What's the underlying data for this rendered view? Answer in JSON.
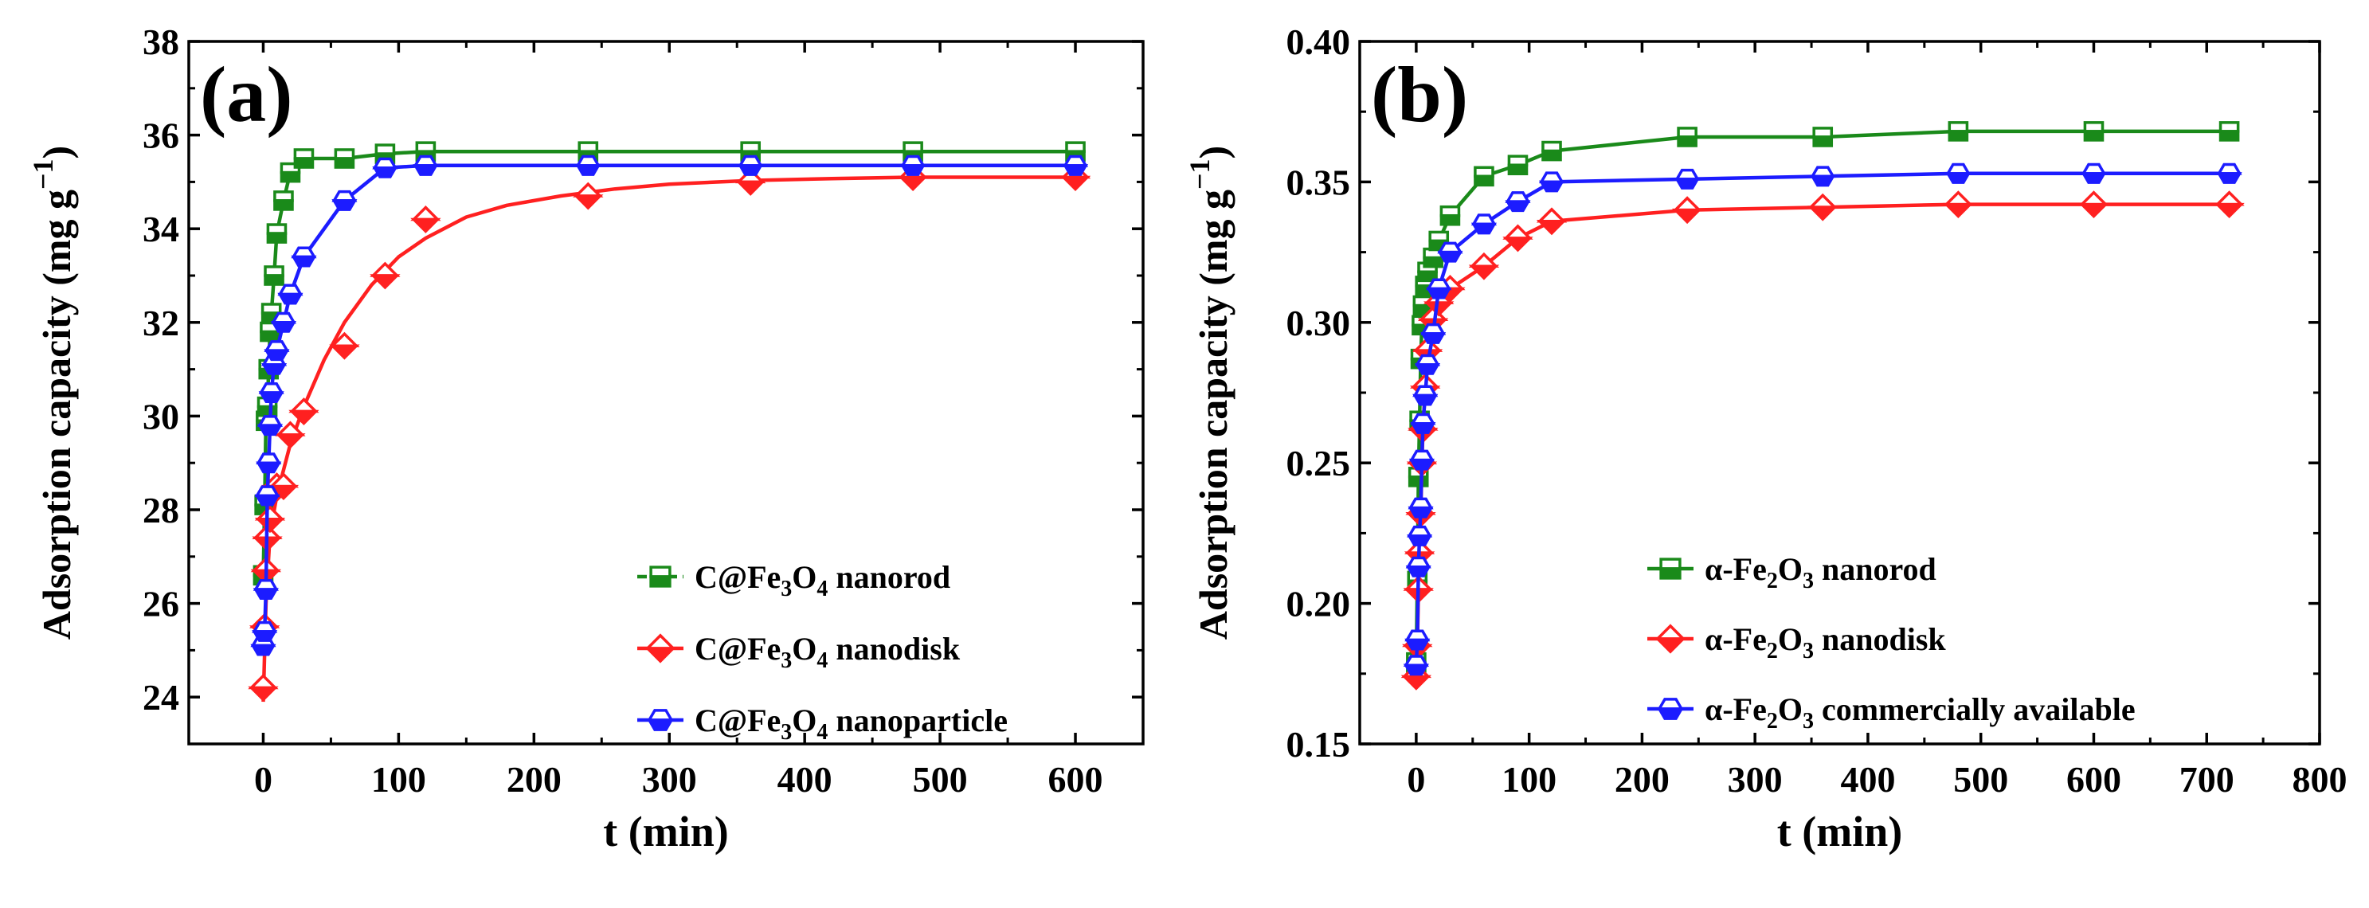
{
  "chart_data": [
    {
      "type": "line",
      "panel_label": "(a)",
      "xlabel": "t (min)",
      "ylabel": "Adsorption capacity (mg g",
      "ylabel_sup": "−1",
      "ylabel_close": ")",
      "xlim": [
        -55,
        650
      ],
      "ylim": [
        23,
        38
      ],
      "xticks": [
        0,
        100,
        200,
        300,
        400,
        500,
        600
      ],
      "yticks": [
        24,
        26,
        28,
        30,
        32,
        34,
        36,
        38
      ],
      "legend_position": "bottom-right",
      "series": [
        {
          "name": "C@Fe3O4 nanorod",
          "legend": {
            "a": "C@Fe",
            "b": "3",
            "c": "O",
            "d": "4",
            "e": " nanorod"
          },
          "color": "#1a8a1a",
          "marker": "square",
          "x": [
            0,
            1,
            2,
            3,
            4,
            5,
            6,
            8,
            10,
            15,
            20,
            30,
            60,
            90,
            120,
            240,
            360,
            480,
            600
          ],
          "y": [
            26.6,
            28.1,
            29.9,
            30.2,
            31.0,
            31.8,
            32.2,
            33.0,
            33.9,
            34.6,
            35.2,
            35.5,
            35.5,
            35.6,
            35.65,
            35.65,
            35.65,
            35.65,
            35.65
          ]
        },
        {
          "name": "C@Fe3O4 nanodisk",
          "legend": {
            "a": "C@Fe",
            "b": "3",
            "c": "O",
            "d": "4",
            "e": " nanodisk"
          },
          "color": "#ff2020",
          "marker": "diamond",
          "x": [
            0,
            1,
            2,
            3,
            5,
            8,
            10,
            15,
            20,
            30,
            60,
            90,
            120,
            240,
            360,
            480,
            600
          ],
          "y": [
            24.2,
            25.5,
            26.7,
            27.4,
            27.8,
            28.4,
            28.5,
            28.5,
            29.6,
            30.1,
            31.5,
            33.0,
            34.2,
            34.7,
            35.0,
            35.1,
            35.1
          ],
          "fit_x": [
            0,
            2,
            5,
            10,
            20,
            30,
            45,
            60,
            80,
            100,
            120,
            150,
            180,
            220,
            260,
            300,
            360,
            420,
            480,
            540,
            600
          ],
          "fit_y": [
            23.9,
            26.0,
            27.5,
            28.3,
            29.4,
            30.2,
            31.2,
            32.0,
            32.8,
            33.4,
            33.8,
            34.25,
            34.5,
            34.7,
            34.85,
            34.95,
            35.03,
            35.07,
            35.1,
            35.1,
            35.1
          ]
        },
        {
          "name": "C@Fe3O4 nanoparticle",
          "legend": {
            "a": "C@Fe",
            "b": "3",
            "c": "O",
            "d": "4",
            "e": " nanoparticle"
          },
          "color": "#1c1cff",
          "marker": "hexagon",
          "x": [
            0,
            1,
            2,
            3,
            4,
            5,
            6,
            8,
            10,
            15,
            20,
            30,
            60,
            90,
            120,
            240,
            360,
            480,
            600
          ],
          "y": [
            25.1,
            25.4,
            26.3,
            28.3,
            29.0,
            29.8,
            30.5,
            31.1,
            31.4,
            32.0,
            32.6,
            33.4,
            34.6,
            35.3,
            35.35,
            35.35,
            35.35,
            35.35,
            35.35
          ]
        }
      ]
    },
    {
      "type": "line",
      "panel_label": "(b)",
      "xlabel": "t (min)",
      "ylabel": "Adsorption capacity (mg g",
      "ylabel_sup": "−1",
      "ylabel_close": ")",
      "xlim": [
        -50,
        800
      ],
      "ylim": [
        0.15,
        0.4
      ],
      "xticks": [
        0,
        100,
        200,
        300,
        400,
        500,
        600,
        700,
        800
      ],
      "yticks": [
        0.15,
        0.2,
        0.25,
        0.3,
        0.35,
        0.4
      ],
      "legend_position": "bottom-right",
      "series": [
        {
          "name": "α-Fe2O3 nanorod",
          "legend": {
            "a": "α-Fe",
            "b": "2",
            "c": "O",
            "d": "3",
            "e": " nanorod"
          },
          "color": "#1a8a1a",
          "marker": "square",
          "x": [
            0,
            1,
            2,
            3,
            4,
            5,
            6,
            8,
            10,
            15,
            20,
            30,
            60,
            90,
            120,
            240,
            360,
            480,
            600,
            720
          ],
          "y": [
            0.179,
            0.208,
            0.245,
            0.265,
            0.287,
            0.299,
            0.306,
            0.313,
            0.318,
            0.323,
            0.329,
            0.338,
            0.352,
            0.356,
            0.361,
            0.366,
            0.366,
            0.368,
            0.368,
            0.368
          ]
        },
        {
          "name": "α-Fe2O3 nanodisk",
          "legend": {
            "a": "α-Fe",
            "b": "2",
            "c": "O",
            "d": "3",
            "e": " nanodisk"
          },
          "color": "#ff2020",
          "marker": "diamond",
          "x": [
            0,
            1,
            2,
            3,
            4,
            5,
            6,
            8,
            10,
            15,
            20,
            30,
            60,
            90,
            120,
            240,
            360,
            480,
            600,
            720
          ],
          "y": [
            0.174,
            0.185,
            0.205,
            0.218,
            0.232,
            0.25,
            0.262,
            0.277,
            0.29,
            0.301,
            0.307,
            0.312,
            0.32,
            0.33,
            0.336,
            0.34,
            0.341,
            0.342,
            0.342,
            0.342
          ]
        },
        {
          "name": "α-Fe2O3 commercially available",
          "legend": {
            "a": "α-Fe",
            "b": "2",
            "c": "O",
            "d": "3",
            "e": " commercially available"
          },
          "color": "#1c1cff",
          "marker": "hexagon",
          "x": [
            0,
            1,
            2,
            3,
            4,
            5,
            6,
            8,
            10,
            15,
            20,
            30,
            60,
            90,
            120,
            240,
            360,
            480,
            600,
            720
          ],
          "y": [
            0.178,
            0.187,
            0.213,
            0.224,
            0.234,
            0.251,
            0.264,
            0.274,
            0.285,
            0.296,
            0.312,
            0.325,
            0.335,
            0.343,
            0.35,
            0.351,
            0.352,
            0.353,
            0.353,
            0.353
          ]
        }
      ]
    }
  ]
}
